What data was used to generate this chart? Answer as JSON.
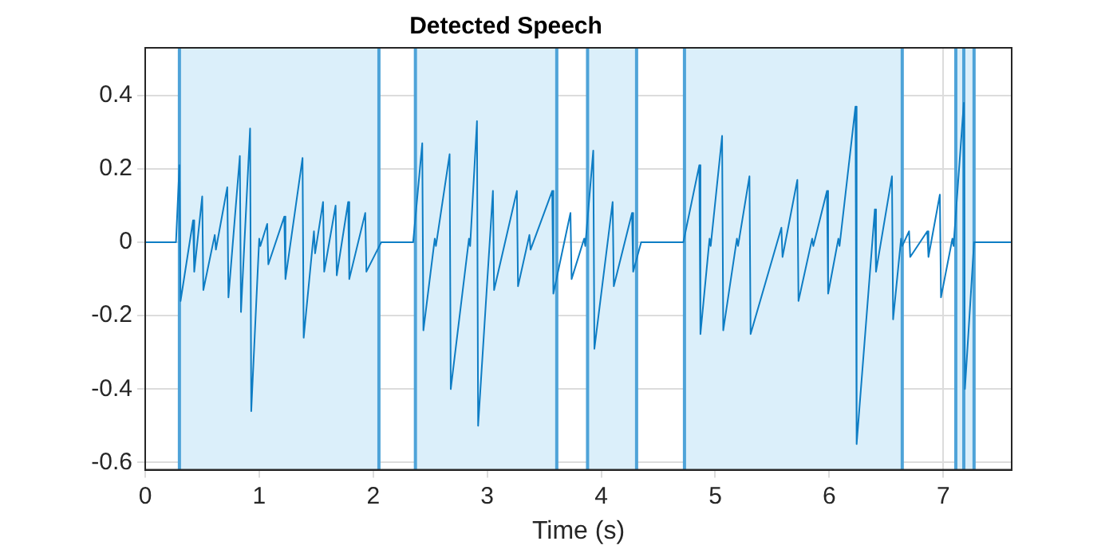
{
  "chart_data": {
    "type": "line",
    "title": "Detected Speech",
    "xlabel": "Time (s)",
    "xlim": [
      0,
      7.6
    ],
    "xticks": [
      0,
      1,
      2,
      3,
      4,
      5,
      6,
      7
    ],
    "ylim": [
      -0.62,
      0.53
    ],
    "yticks": [
      -0.6,
      -0.4,
      -0.2,
      0,
      0.2,
      0.4
    ],
    "grid": true,
    "legend": false,
    "marker": "none",
    "line_style": "solid",
    "series": [
      {
        "color": "#0e7dc4",
        "x": [
          0,
          0.27,
          0.3,
          0.31,
          0.42,
          0.43,
          0.5,
          0.51,
          0.61,
          0.62,
          0.72,
          0.73,
          0.83,
          0.84,
          0.92,
          0.93,
          1.0,
          1.01,
          1.07,
          1.08,
          1.22,
          1.23,
          1.38,
          1.39,
          1.48,
          1.49,
          1.56,
          1.57,
          1.67,
          1.68,
          1.78,
          1.79,
          1.93,
          1.94,
          2.07,
          2.35,
          2.43,
          2.44,
          2.54,
          2.55,
          2.67,
          2.68,
          2.84,
          2.85,
          2.91,
          2.92,
          3.05,
          3.06,
          3.26,
          3.27,
          3.37,
          3.38,
          3.57,
          3.58,
          3.73,
          3.74,
          3.85,
          3.86,
          3.93,
          3.94,
          4.1,
          4.11,
          4.27,
          4.28,
          4.35,
          4.72,
          4.86,
          4.87,
          4.95,
          4.96,
          5.06,
          5.07,
          5.19,
          5.2,
          5.3,
          5.31,
          5.58,
          5.59,
          5.72,
          5.73,
          5.85,
          5.86,
          5.98,
          5.99,
          6.08,
          6.09,
          6.23,
          6.24,
          6.4,
          6.41,
          6.55,
          6.56,
          6.63,
          6.64,
          6.7,
          6.71,
          6.86,
          6.87,
          6.97,
          6.98,
          7.08,
          7.09,
          7.18,
          7.19,
          7.27,
          7.6
        ],
        "values": [
          0,
          0,
          0.21,
          -0.16,
          0.06,
          -0.08,
          0.125,
          -0.13,
          0.02,
          -0.02,
          0.15,
          -0.15,
          0.235,
          -0.19,
          0.31,
          -0.46,
          0.01,
          -0.01,
          0.05,
          -0.06,
          0.07,
          -0.1,
          0.23,
          -0.26,
          0.03,
          -0.03,
          0.11,
          -0.08,
          0.1,
          -0.09,
          0.11,
          -0.1,
          0.08,
          -0.08,
          0,
          0,
          0.27,
          -0.24,
          0.01,
          -0.01,
          0.24,
          -0.4,
          0.01,
          -0.01,
          0.33,
          -0.5,
          0.14,
          -0.13,
          0.14,
          -0.12,
          0.02,
          -0.02,
          0.14,
          -0.14,
          0.08,
          -0.1,
          0.01,
          -0.01,
          0.25,
          -0.29,
          0.11,
          -0.12,
          0.08,
          -0.08,
          0,
          0,
          0.21,
          -0.25,
          0.01,
          -0.01,
          0.29,
          -0.24,
          0.01,
          -0.01,
          0.18,
          -0.25,
          0.04,
          -0.04,
          0.17,
          -0.16,
          0.01,
          -0.01,
          0.14,
          -0.14,
          0.01,
          -0.01,
          0.37,
          -0.55,
          0.09,
          -0.08,
          0.18,
          -0.21,
          0.01,
          -0.01,
          0.03,
          -0.04,
          0.03,
          -0.04,
          0.13,
          -0.15,
          0.01,
          -0.01,
          0.38,
          -0.4,
          0,
          0
        ]
      }
    ],
    "bands": [
      {
        "axis": "x",
        "from": 0.3,
        "to": 2.05,
        "color": "#dbeffa"
      },
      {
        "axis": "x",
        "from": 2.37,
        "to": 3.61,
        "color": "#dbeffa"
      },
      {
        "axis": "x",
        "from": 3.88,
        "to": 4.31,
        "color": "#dbeffa"
      },
      {
        "axis": "x",
        "from": 4.73,
        "to": 6.64,
        "color": "#dbeffa"
      },
      {
        "axis": "x",
        "from": 7.11,
        "to": 7.18,
        "color": "#dbeffa"
      },
      {
        "axis": "x",
        "from": 7.18,
        "to": 7.27,
        "color": "#dbeffa"
      }
    ],
    "ref_lines": [
      {
        "axis": "x",
        "value": 0.3,
        "color": "#4ea3d8"
      },
      {
        "axis": "x",
        "value": 2.05,
        "color": "#4ea3d8"
      },
      {
        "axis": "x",
        "value": 2.37,
        "color": "#4ea3d8"
      },
      {
        "axis": "x",
        "value": 3.61,
        "color": "#4ea3d8"
      },
      {
        "axis": "x",
        "value": 3.88,
        "color": "#4ea3d8"
      },
      {
        "axis": "x",
        "value": 4.31,
        "color": "#4ea3d8"
      },
      {
        "axis": "x",
        "value": 4.73,
        "color": "#4ea3d8"
      },
      {
        "axis": "x",
        "value": 6.64,
        "color": "#4ea3d8"
      },
      {
        "axis": "x",
        "value": 7.11,
        "color": "#4ea3d8"
      },
      {
        "axis": "x",
        "value": 7.18,
        "color": "#4ea3d8"
      },
      {
        "axis": "x",
        "value": 7.27,
        "color": "#4ea3d8"
      }
    ]
  }
}
